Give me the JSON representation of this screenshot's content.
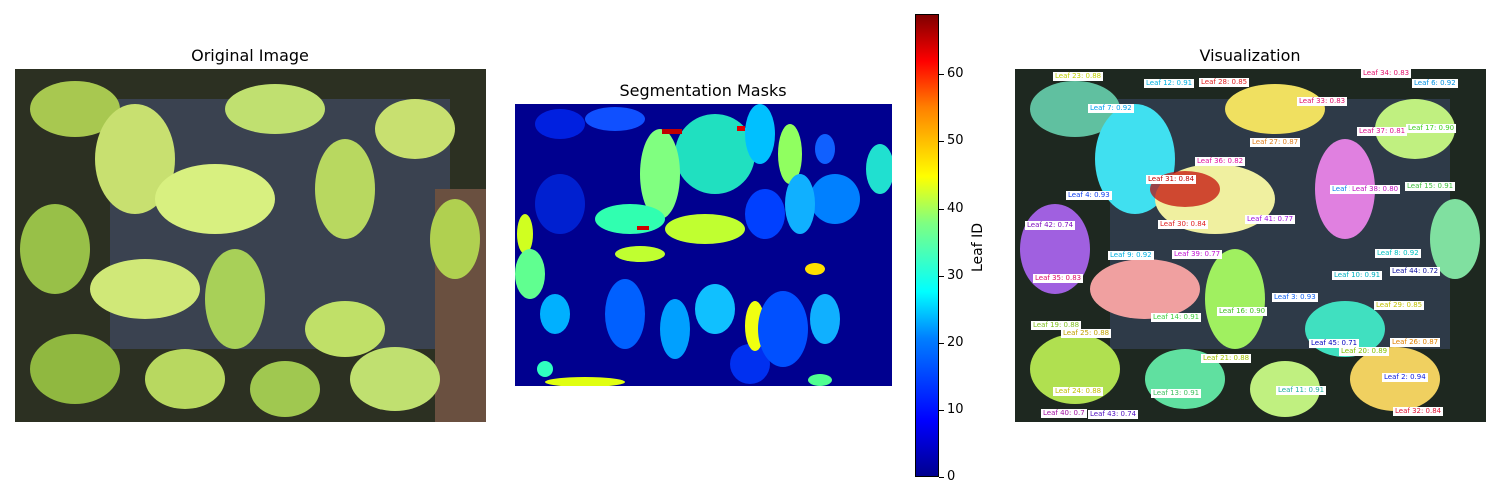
{
  "chart_data": [
    {
      "type": "other",
      "title": "Original Image"
    },
    {
      "type": "heatmap",
      "title": "Segmentation Masks",
      "colorbar": {
        "label": "Leaf ID",
        "ticks": [
          "0",
          "10",
          "20",
          "30",
          "40",
          "50",
          "60"
        ],
        "range": [
          0,
          69
        ],
        "colormap": "jet"
      }
    },
    {
      "type": "other",
      "title": "Visualization",
      "labels": [
        {
          "text": "Leaf 23: 0.88",
          "color": "#c0d000"
        },
        {
          "text": "Leaf 12: 0.91",
          "color": "#00b0e0"
        },
        {
          "text": "Leaf 28: 0.85",
          "color": "#e02020"
        },
        {
          "text": "Leaf 34: 0.83",
          "color": "#e0106a"
        },
        {
          "text": "Leaf 6: 0.92",
          "color": "#0090e0"
        },
        {
          "text": "Leaf 7: 0.92",
          "color": "#00a0f0"
        },
        {
          "text": "Leaf 33: 0.83",
          "color": "#e0106a"
        },
        {
          "text": "Leaf 37: 0.81",
          "color": "#e01090"
        },
        {
          "text": "Leaf 17: 0.90",
          "color": "#40d020"
        },
        {
          "text": "Leaf 27: 0.87",
          "color": "#e08020"
        },
        {
          "text": "Leaf 36: 0.82",
          "color": "#e010a0"
        },
        {
          "text": "Leaf 31: 0.84",
          "color": "#c00000"
        },
        {
          "text": "Leaf 5: 0",
          "color": "#1080f0"
        },
        {
          "text": "Leaf 38: 0.80",
          "color": "#c010c0"
        },
        {
          "text": "Leaf 15: 0.91",
          "color": "#40c040"
        },
        {
          "text": "Leaf 4: 0.93",
          "color": "#1040f0"
        },
        {
          "text": "Leaf 41: 0.77",
          "color": "#a010e0"
        },
        {
          "text": "Leaf 42: 0.74",
          "color": "#8010c0"
        },
        {
          "text": "Leaf 30: 0.84",
          "color": "#e02020"
        },
        {
          "text": "Leaf 9: 0.92",
          "color": "#00b0e0"
        },
        {
          "text": "Leaf 39: 0.77",
          "color": "#c010d0"
        },
        {
          "text": "Leaf 8: 0.92",
          "color": "#00c0c0"
        },
        {
          "text": "Leaf 10: 0.91",
          "color": "#00b0c0"
        },
        {
          "text": "Leaf 44: 0.72",
          "color": "#1010a0"
        },
        {
          "text": "Leaf 35: 0.83",
          "color": "#e0106a"
        },
        {
          "text": "Leaf 3: 0.93",
          "color": "#1060f0"
        },
        {
          "text": "Leaf 29: 0.85",
          "color": "#c0c000"
        },
        {
          "text": "Leaf 14: 0.91",
          "color": "#40d040"
        },
        {
          "text": "Leaf 16: 0.90",
          "color": "#40c020"
        },
        {
          "text": "Leaf 19: 0.88",
          "color": "#80c020"
        },
        {
          "text": "Leaf 25: 0.88",
          "color": "#c0a000"
        },
        {
          "text": "Leaf 45: 0.71",
          "color": "#0000c0"
        },
        {
          "text": "Leaf 20: 0.89",
          "color": "#80c000"
        },
        {
          "text": "Leaf 26: 0.87",
          "color": "#e08000"
        },
        {
          "text": "Leaf 21: 0.88",
          "color": "#a0c000"
        },
        {
          "text": "Leaf 2: 0.94",
          "color": "#1020e0"
        },
        {
          "text": "Leaf 24: 0.88",
          "color": "#c0c000"
        },
        {
          "text": "Leaf 13: 0.91",
          "color": "#40c060"
        },
        {
          "text": "Leaf 11: 0.91",
          "color": "#20b0a0"
        },
        {
          "text": "Leaf 40: 0.7",
          "color": "#a010a0"
        },
        {
          "text": "Leaf 43: 0.74",
          "color": "#5010c0"
        },
        {
          "text": "Leaf 32: 0.84",
          "color": "#e01030"
        }
      ]
    }
  ]
}
